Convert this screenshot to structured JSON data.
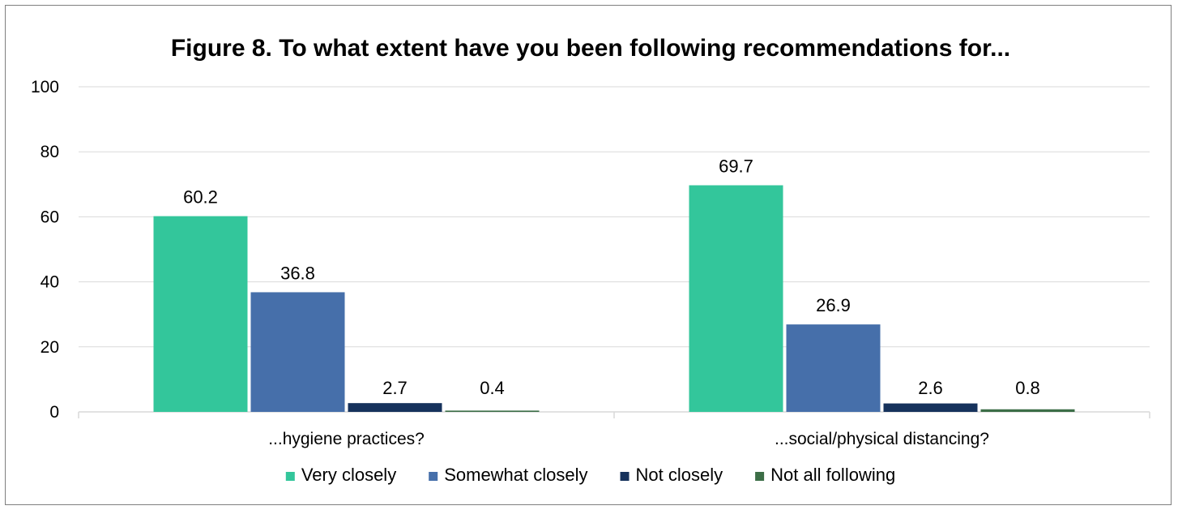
{
  "chart_data": {
    "type": "bar",
    "title": "Figure 8. To what extent have you been following recommendations for...",
    "xlabel": "",
    "ylabel": "",
    "ylim": [
      0,
      100
    ],
    "yticks": [
      0,
      20,
      40,
      60,
      80,
      100
    ],
    "grid": true,
    "legend_position": "bottom",
    "categories": [
      "...hygiene practices?",
      "...social/physical distancing?"
    ],
    "series": [
      {
        "name": "Very closely",
        "color": "#33c69b",
        "values": [
          60.2,
          69.7
        ]
      },
      {
        "name": "Somewhat closely",
        "color": "#466faa",
        "values": [
          36.8,
          26.9
        ]
      },
      {
        "name": "Not closely",
        "color": "#16325c",
        "values": [
          2.7,
          2.6
        ]
      },
      {
        "name": "Not all following",
        "color": "#3c6e47",
        "values": [
          0.4,
          0.8
        ]
      }
    ]
  }
}
